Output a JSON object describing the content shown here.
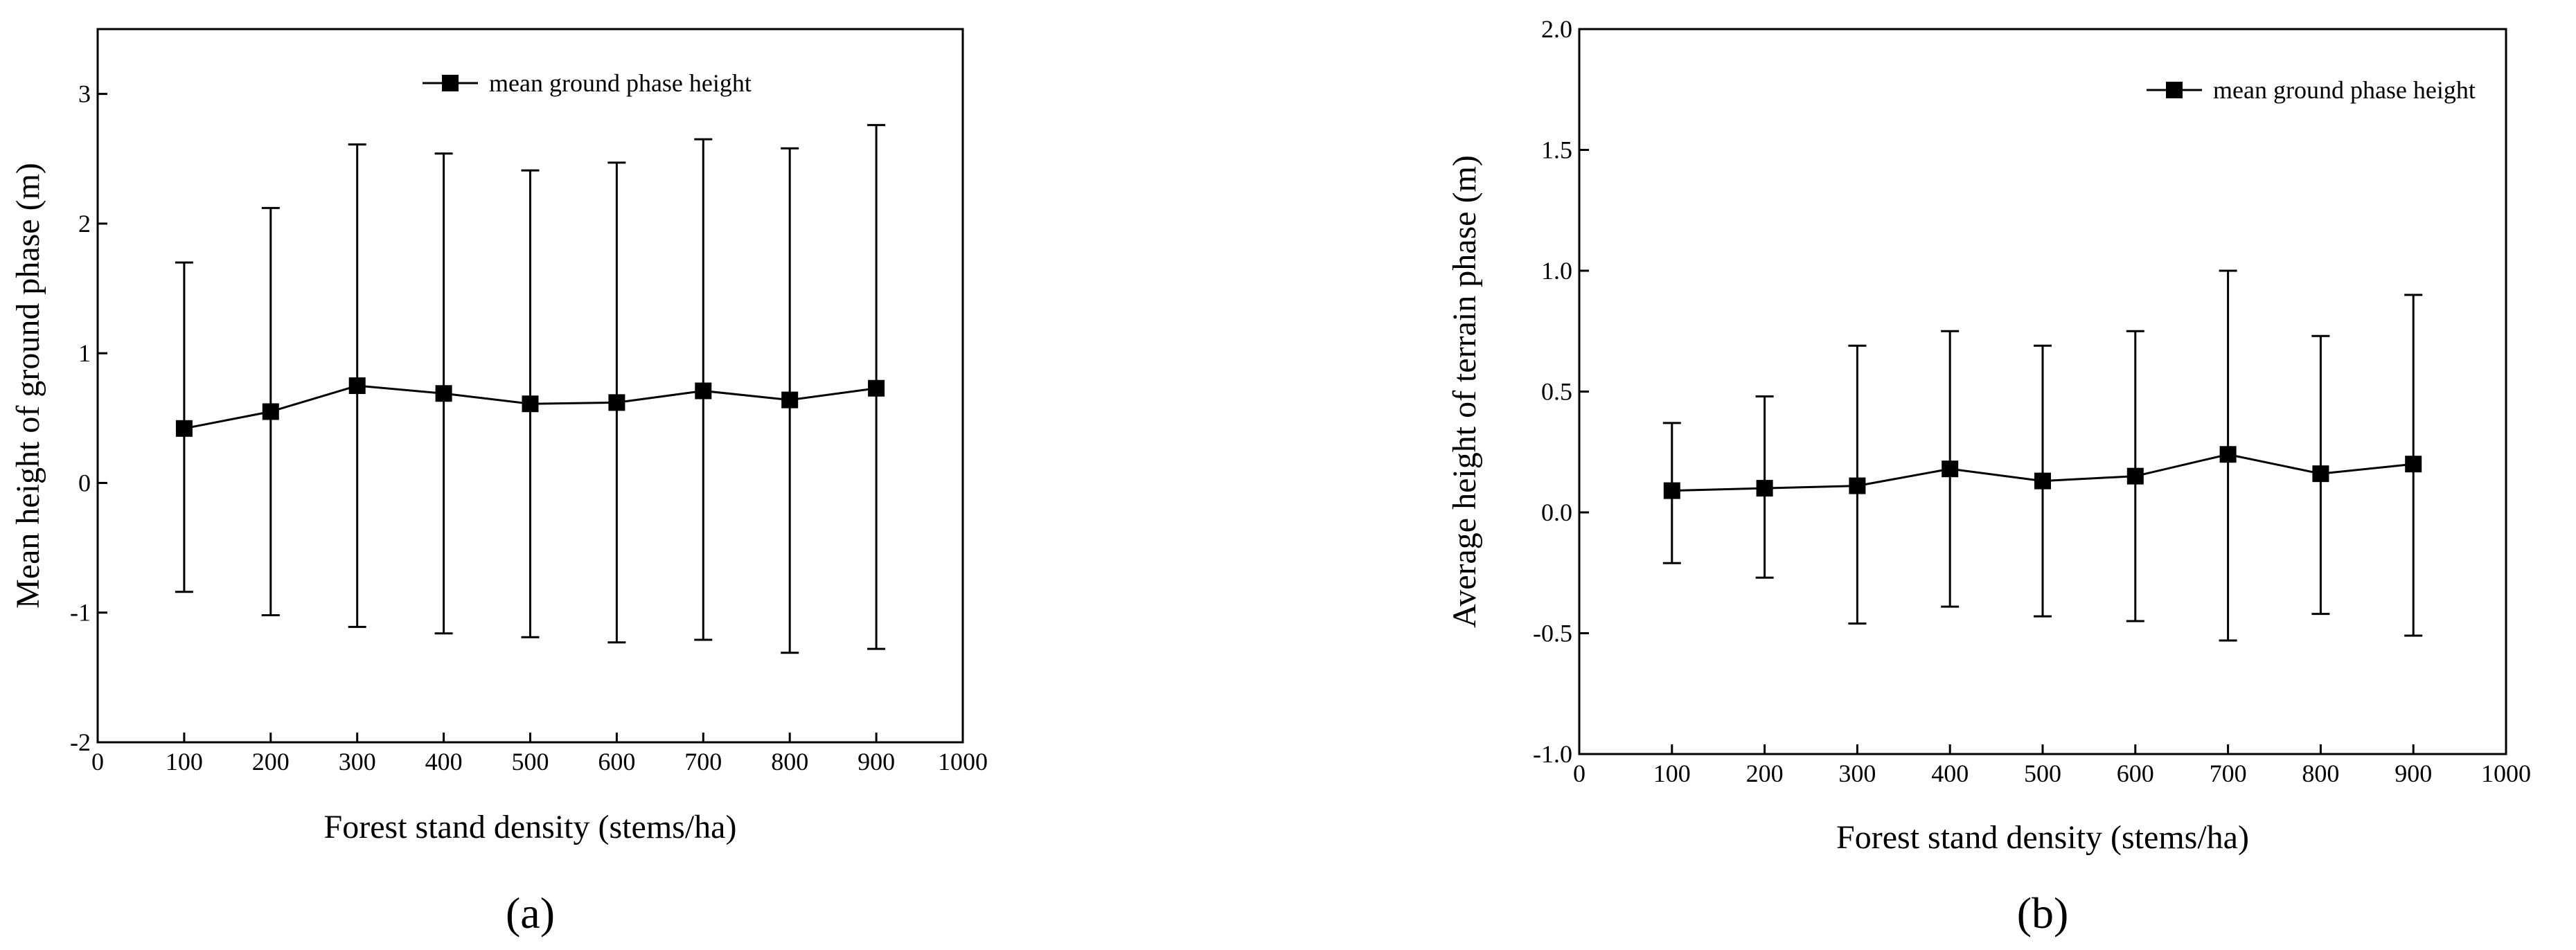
{
  "chart_data": [
    {
      "type": "line",
      "panel_label": "(a)",
      "xlabel": "Forest stand density (stems/ha)",
      "ylabel": "Mean height of ground phase (m)",
      "xlim": [
        0,
        1000
      ],
      "ylim": [
        -2,
        3.5
      ],
      "xticks": [
        0,
        100,
        200,
        300,
        400,
        500,
        600,
        700,
        800,
        900,
        1000
      ],
      "yticks": [
        -2,
        -1,
        0,
        1,
        2,
        3
      ],
      "ytick_labels": [
        "-2",
        "-1",
        "0",
        "1",
        "2",
        "3"
      ],
      "grid": false,
      "legend_position": "top-right",
      "series": [
        {
          "name": "mean ground phase height",
          "x": [
            100,
            200,
            300,
            400,
            500,
            600,
            700,
            800,
            900
          ],
          "y": [
            0.42,
            0.55,
            0.75,
            0.69,
            0.61,
            0.62,
            0.71,
            0.64,
            0.73
          ],
          "error_low": [
            -0.84,
            -1.02,
            -1.11,
            -1.16,
            -1.19,
            -1.23,
            -1.21,
            -1.31,
            -1.28
          ],
          "error_high": [
            1.7,
            2.12,
            2.61,
            2.54,
            2.41,
            2.47,
            2.65,
            2.58,
            2.76
          ]
        }
      ]
    },
    {
      "type": "line",
      "panel_label": "(b)",
      "xlabel": "Forest stand density (stems/ha)",
      "ylabel": "Average height of terrain phase (m)",
      "xlim": [
        0,
        1000
      ],
      "ylim": [
        -1.0,
        2.0
      ],
      "xticks": [
        0,
        100,
        200,
        300,
        400,
        500,
        600,
        700,
        800,
        900,
        1000
      ],
      "yticks": [
        -1.0,
        -0.5,
        0.0,
        0.5,
        1.0,
        1.5,
        2.0
      ],
      "ytick_labels": [
        "-1.0",
        "-0.5",
        "0.0",
        "0.5",
        "1.0",
        "1.5",
        "2.0"
      ],
      "grid": false,
      "legend_position": "top-right",
      "series": [
        {
          "name": "mean ground phase height",
          "x": [
            100,
            200,
            300,
            400,
            500,
            600,
            700,
            800,
            900
          ],
          "y": [
            0.09,
            0.1,
            0.11,
            0.18,
            0.13,
            0.15,
            0.24,
            0.16,
            0.2
          ],
          "error_low": [
            -0.21,
            -0.27,
            -0.46,
            -0.39,
            -0.43,
            -0.45,
            -0.53,
            -0.42,
            -0.51
          ],
          "error_high": [
            0.37,
            0.48,
            0.69,
            0.75,
            0.69,
            0.75,
            1.0,
            0.73,
            0.9
          ]
        }
      ]
    }
  ]
}
